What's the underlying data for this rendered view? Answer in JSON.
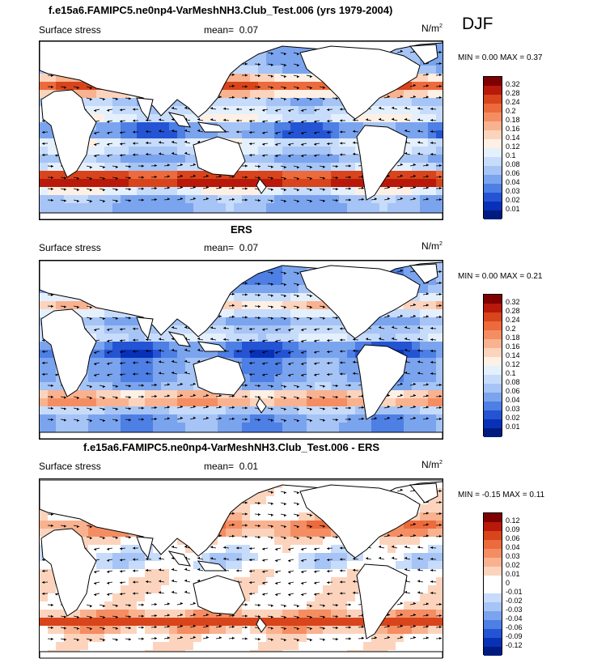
{
  "season": "DJF",
  "panels": [
    {
      "title": "f.e15a6.FAMIPC5.ne0np4-VarMeshNH3.Club_Test.006 (yrs 1979-2004)",
      "left_label": "Surface stress",
      "mean_label": "mean=",
      "mean_value": "0.07",
      "units": "N/m",
      "units_exp": "2",
      "minmax": "MIN =  0.00 MAX =  0.37",
      "colorbar": {
        "labels": [
          "0.32",
          "0.28",
          "0.24",
          "0.2",
          "0.18",
          "0.16",
          "0.14",
          "0.12",
          "0.1",
          "0.08",
          "0.06",
          "0.04",
          "0.03",
          "0.02",
          "0.01"
        ],
        "colors": [
          "#7f0000",
          "#b8190a",
          "#d8441b",
          "#ec6a3c",
          "#f58d63",
          "#f9b28f",
          "#fcd4bd",
          "#fef0e4",
          "#e5f0fd",
          "#c7dcfb",
          "#a6c4f5",
          "#7ba4ee",
          "#4d7fe4",
          "#2454d4",
          "#0831b8",
          "#001b80"
        ]
      }
    },
    {
      "title": "ERS",
      "left_label": "Surface stress",
      "mean_label": "mean=",
      "mean_value": "0.07",
      "units": "N/m",
      "units_exp": "2",
      "minmax": "MIN =  0.00 MAX =  0.21",
      "colorbar": {
        "labels": [
          "0.32",
          "0.28",
          "0.24",
          "0.2",
          "0.18",
          "0.16",
          "0.14",
          "0.12",
          "0.1",
          "0.08",
          "0.06",
          "0.04",
          "0.03",
          "0.02",
          "0.01"
        ],
        "colors": [
          "#7f0000",
          "#b8190a",
          "#d8441b",
          "#ec6a3c",
          "#f58d63",
          "#f9b28f",
          "#fcd4bd",
          "#fef0e4",
          "#e5f0fd",
          "#c7dcfb",
          "#a6c4f5",
          "#7ba4ee",
          "#4d7fe4",
          "#2454d4",
          "#0831b8",
          "#001b80"
        ]
      }
    },
    {
      "title": "f.e15a6.FAMIPC5.ne0np4-VarMeshNH3.Club_Test.006 - ERS",
      "left_label": "Surface stress",
      "mean_label": "mean=",
      "mean_value": "0.01",
      "units": "N/m",
      "units_exp": "2",
      "minmax": "MIN = -0.15 MAX =  0.11",
      "colorbar": {
        "labels": [
          "0.12",
          "0.09",
          "0.06",
          "0.04",
          "0.03",
          "0.02",
          "0.01",
          "0",
          "-0.01",
          "-0.02",
          "-0.03",
          "-0.04",
          "-0.06",
          "-0.09",
          "-0.12"
        ],
        "colors": [
          "#7f0000",
          "#b8190a",
          "#d8441b",
          "#ec6a3c",
          "#f58d63",
          "#f9b28f",
          "#fcd4bd",
          "#ffffff",
          "#ffffff",
          "#c7dcfb",
          "#a6c4f5",
          "#7ba4ee",
          "#4d7fe4",
          "#2454d4",
          "#0831b8",
          "#001b80"
        ]
      }
    }
  ],
  "chart_data": [
    {
      "type": "heatmap",
      "title": "f.e15a6.FAMIPC5.ne0np4-VarMeshNH3.Club_Test.006 (yrs 1979-2004)",
      "variable": "Surface stress",
      "units": "N/m2",
      "mean": 0.07,
      "min": 0.0,
      "max": 0.37,
      "contour_levels": [
        0.01,
        0.02,
        0.03,
        0.04,
        0.06,
        0.08,
        0.1,
        0.12,
        0.14,
        0.16,
        0.18,
        0.2,
        0.24,
        0.28,
        0.32
      ],
      "legend": "right"
    },
    {
      "type": "heatmap",
      "title": "ERS",
      "variable": "Surface stress",
      "units": "N/m2",
      "mean": 0.07,
      "min": 0.0,
      "max": 0.21,
      "contour_levels": [
        0.01,
        0.02,
        0.03,
        0.04,
        0.06,
        0.08,
        0.1,
        0.12,
        0.14,
        0.16,
        0.18,
        0.2,
        0.24,
        0.28,
        0.32
      ],
      "legend": "right"
    },
    {
      "type": "heatmap",
      "title": "f.e15a6.FAMIPC5.ne0np4-VarMeshNH3.Club_Test.006 - ERS",
      "variable": "Surface stress",
      "units": "N/m2",
      "mean": 0.01,
      "min": -0.15,
      "max": 0.11,
      "contour_levels": [
        -0.12,
        -0.09,
        -0.06,
        -0.04,
        -0.03,
        -0.02,
        -0.01,
        0,
        0.01,
        0.02,
        0.03,
        0.04,
        0.06,
        0.09,
        0.12
      ],
      "legend": "right"
    }
  ]
}
